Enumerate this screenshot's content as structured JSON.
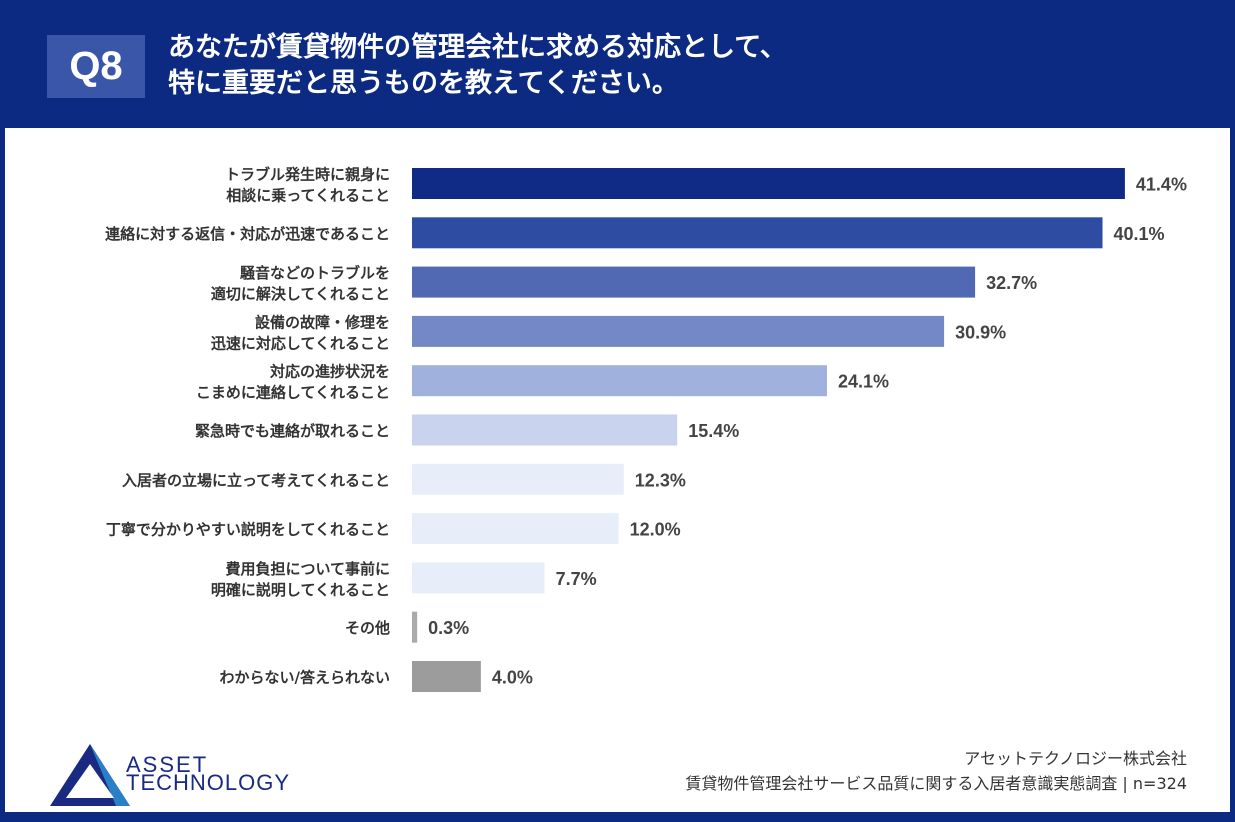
{
  "header": {
    "badge": "Q8",
    "title_line1": "あなたが賃貸物件の管理会社に求める対応として、",
    "title_line2": "特に重要だと思うものを教えてください。"
  },
  "chart_data": {
    "type": "bar",
    "orientation": "horizontal",
    "categories": [
      [
        "トラブル発生時に親身に",
        "相談に乗ってくれること"
      ],
      [
        "連絡に対する返信・対応が迅速であること"
      ],
      [
        "騒音などのトラブルを",
        "適切に解決してくれること"
      ],
      [
        "設備の故障・修理を",
        "迅速に対応してくれること"
      ],
      [
        "対応の進捗状況を",
        "こまめに連絡してくれること"
      ],
      [
        "緊急時でも連絡が取れること"
      ],
      [
        "入居者の立場に立って考えてくれること"
      ],
      [
        "丁寧で分かりやすい説明をしてくれること"
      ],
      [
        "費用負担について事前に",
        "明確に説明してくれること"
      ],
      [
        "その他"
      ],
      [
        "わからない/答えられない"
      ]
    ],
    "values": [
      41.4,
      40.1,
      32.7,
      30.9,
      24.1,
      15.4,
      12.3,
      12.0,
      7.7,
      0.3,
      4.0
    ],
    "value_labels": [
      "41.4%",
      "40.1%",
      "32.7%",
      "30.9%",
      "24.1%",
      "15.4%",
      "12.3%",
      "12.0%",
      "7.7%",
      "0.3%",
      "4.0%"
    ],
    "colors": [
      "#0f2b85",
      "#2f4ca3",
      "#5069b2",
      "#7388c4",
      "#a1b1dd",
      "#c9d3ed",
      "#e8eef9",
      "#e8eef9",
      "#e8eef9",
      "#aaaaaa",
      "#9c9c9c"
    ],
    "grid": false
  },
  "footer": {
    "company": "アセットテクノロジー株式会社",
    "survey": "賃貸物件管理会社サービス品質に関する入居者意識実態調査 | n=324"
  },
  "logo": {
    "text_line1": "ASSET",
    "text_line2": "TECHNOLOGY"
  }
}
